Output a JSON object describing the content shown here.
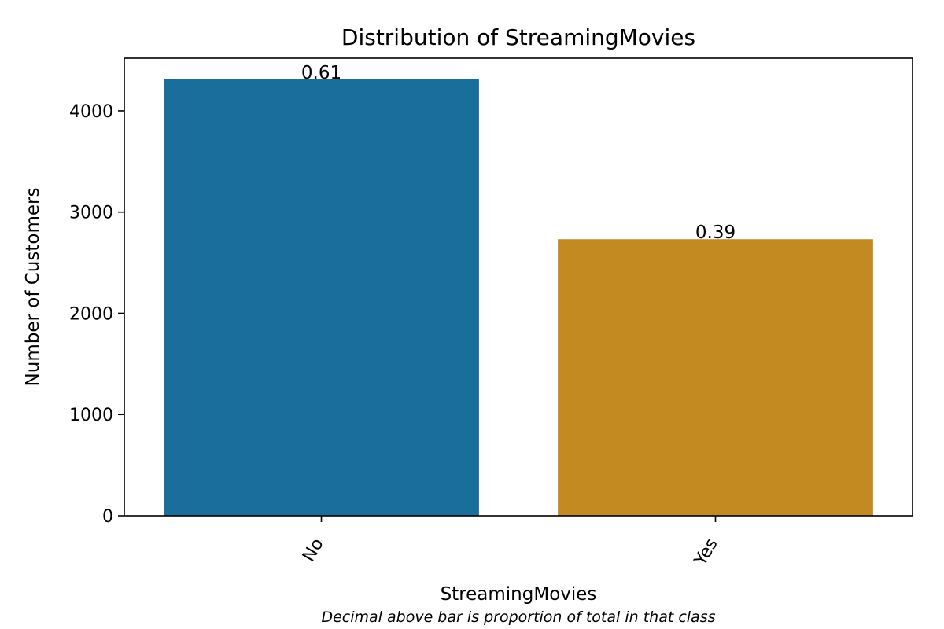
{
  "chart_data": {
    "type": "bar",
    "title": "Distribution of StreamingMovies",
    "xlabel": "StreamingMovies",
    "ylabel": "Number of Customers",
    "note": "Decimal above bar is proportion of total in that class",
    "categories": [
      "No",
      "Yes"
    ],
    "values": [
      4311,
      2732
    ],
    "proportion_labels": [
      "0.61",
      "0.39"
    ],
    "colors": [
      "#1a6e9b",
      "#c28a21"
    ],
    "ylim": [
      0,
      4520
    ],
    "yticks": [
      0,
      1000,
      2000,
      3000,
      4000
    ],
    "ytick_labels": [
      "0",
      "1000",
      "2000",
      "3000",
      "4000"
    ],
    "xtick_rotation_deg": -60,
    "grid": false,
    "legend": "none"
  }
}
